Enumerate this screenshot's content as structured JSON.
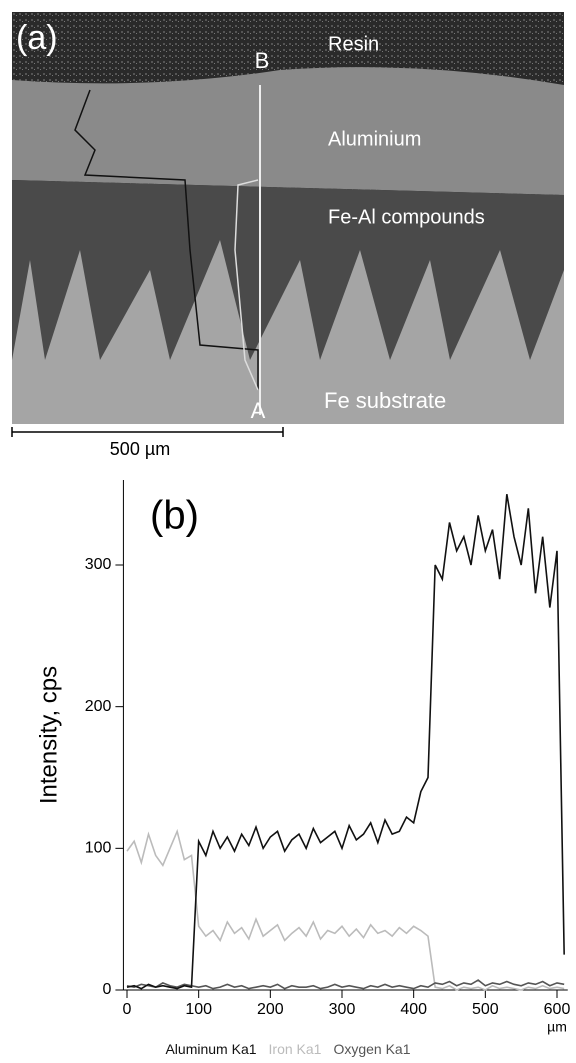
{
  "figure_a": {
    "panel_label": "(a)",
    "labels": [
      "Resin",
      "Aluminium",
      "Fe-Al compounds",
      "Fe substrate"
    ],
    "point_top": "B",
    "point_bottom": "A",
    "scale_bar": "500 µm"
  },
  "chart_data": {
    "type": "line",
    "panel_label": "(b)",
    "y_label": "Intensity, cps",
    "x_unit": "µm",
    "xlim": [
      -5,
      615
    ],
    "xticks": [
      0,
      100,
      200,
      300,
      400,
      500,
      600
    ],
    "ylim": [
      0,
      360
    ],
    "yticks": [
      0,
      100,
      200,
      300
    ],
    "x": [
      0,
      10,
      20,
      30,
      40,
      50,
      60,
      70,
      80,
      90,
      100,
      110,
      120,
      130,
      140,
      150,
      160,
      170,
      180,
      190,
      200,
      210,
      220,
      230,
      240,
      250,
      260,
      270,
      280,
      290,
      300,
      310,
      320,
      330,
      340,
      350,
      360,
      370,
      380,
      390,
      400,
      410,
      420,
      430,
      440,
      450,
      460,
      470,
      480,
      490,
      500,
      510,
      520,
      530,
      540,
      550,
      560,
      570,
      580,
      590,
      600,
      610
    ],
    "series": [
      {
        "name": "Aluminum Ka1",
        "color": "#111111",
        "values": [
          2,
          3,
          1,
          4,
          2,
          3,
          2,
          1,
          3,
          2,
          105,
          95,
          112,
          100,
          108,
          98,
          110,
          102,
          115,
          100,
          108,
          112,
          98,
          106,
          110,
          100,
          114,
          104,
          108,
          112,
          100,
          116,
          106,
          110,
          118,
          104,
          120,
          110,
          112,
          122,
          118,
          140,
          150,
          300,
          290,
          330,
          310,
          320,
          300,
          335,
          310,
          325,
          290,
          350,
          320,
          300,
          340,
          280,
          320,
          270,
          310,
          25
        ]
      },
      {
        "name": "Iron Ka1",
        "color": "#bbbbbb",
        "values": [
          98,
          105,
          90,
          110,
          95,
          88,
          100,
          112,
          92,
          95,
          45,
          38,
          42,
          35,
          48,
          40,
          44,
          36,
          50,
          38,
          42,
          46,
          35,
          40,
          44,
          38,
          48,
          36,
          42,
          40,
          45,
          38,
          43,
          37,
          46,
          40,
          42,
          38,
          44,
          40,
          45,
          42,
          38,
          2,
          1,
          3,
          0,
          2,
          1,
          2,
          0,
          3,
          1,
          2,
          1,
          0,
          2,
          1,
          3,
          1,
          2,
          1
        ]
      },
      {
        "name": "Oxygen Ka1",
        "color": "#555555",
        "values": [
          3,
          2,
          4,
          3,
          2,
          5,
          3,
          2,
          4,
          3,
          2,
          3,
          1,
          2,
          4,
          2,
          3,
          1,
          2,
          3,
          2,
          4,
          1,
          3,
          2,
          2,
          3,
          1,
          2,
          4,
          2,
          3,
          2,
          1,
          3,
          2,
          4,
          2,
          3,
          2,
          1,
          3,
          2,
          5,
          4,
          6,
          3,
          5,
          4,
          7,
          3,
          5,
          4,
          6,
          4,
          3,
          5,
          4,
          6,
          3,
          5,
          4
        ]
      }
    ]
  }
}
